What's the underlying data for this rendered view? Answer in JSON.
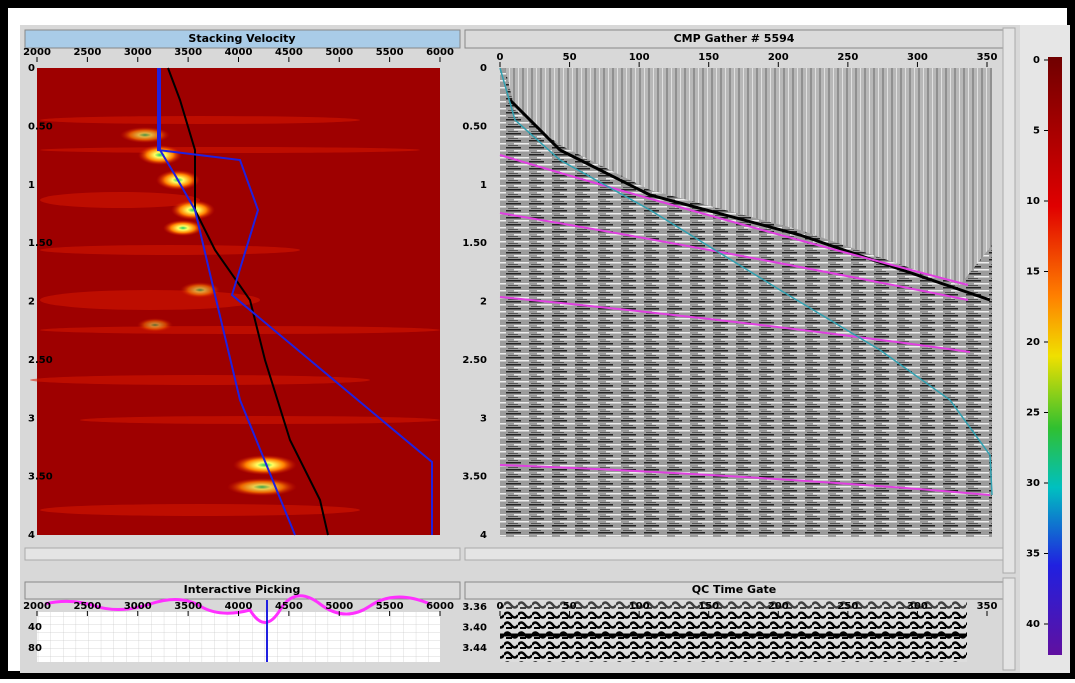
{
  "panels": {
    "velocity": {
      "title": "Stacking Velocity",
      "x_ticks": [
        "2000",
        "2500",
        "3000",
        "3500",
        "4000",
        "4500",
        "5000",
        "5500",
        "6000"
      ],
      "y_ticks": [
        "0",
        "0.50",
        "1",
        "1.50",
        "2",
        "2.50",
        "3",
        "3.50",
        "4"
      ]
    },
    "gather": {
      "title": "CMP Gather # 5594",
      "x_ticks": [
        "0",
        "50",
        "100",
        "150",
        "200",
        "250",
        "300",
        "350"
      ],
      "y_ticks": [
        "0",
        "0.50",
        "1",
        "1.50",
        "2",
        "2.50",
        "3",
        "3.50",
        "4"
      ]
    },
    "picking": {
      "title": "Interactive Picking",
      "x_ticks": [
        "2000",
        "2500",
        "3000",
        "3500",
        "4000",
        "4500",
        "5000",
        "5500",
        "6000"
      ],
      "y_ticks": [
        "40",
        "80"
      ]
    },
    "qc": {
      "title": "QC Time Gate",
      "x_ticks": [
        "0",
        "50",
        "100",
        "150",
        "200",
        "250",
        "300",
        "350"
      ],
      "y_ticks": [
        "3.36",
        "3.40",
        "3.44"
      ]
    }
  },
  "colorbar": {
    "ticks": [
      "0",
      "5",
      "10",
      "15",
      "20",
      "25",
      "30",
      "35",
      "40"
    ]
  }
}
